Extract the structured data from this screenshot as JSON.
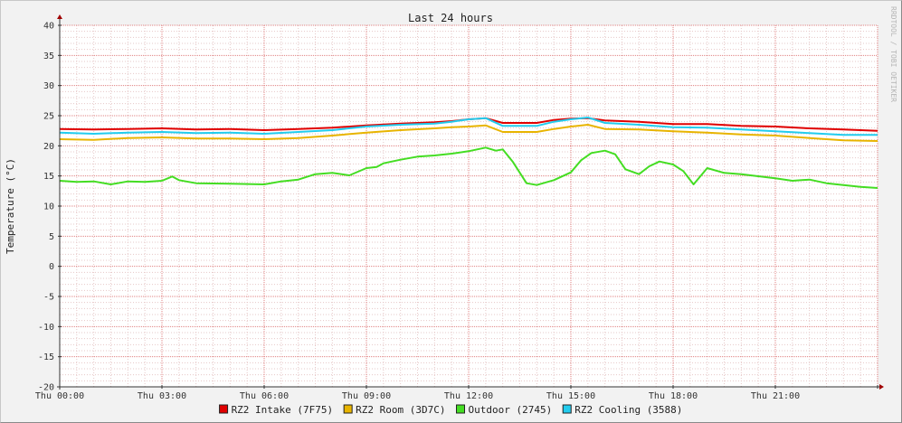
{
  "chart_data": {
    "type": "line",
    "title": "Last 24 hours",
    "ylabel": "Temperature (°C)",
    "watermark": "RRDTOOL / TOBI OETIKER",
    "ylim": [
      -20,
      40
    ],
    "y_ticks": [
      40,
      35,
      30,
      25,
      20,
      15,
      10,
      5,
      0,
      -5,
      -10,
      -15,
      -20
    ],
    "xlim_hours": [
      0,
      24
    ],
    "x_ticks": [
      "Thu 00:00",
      "Thu 03:00",
      "Thu 06:00",
      "Thu 09:00",
      "Thu 12:00",
      "Thu 15:00",
      "Thu 18:00",
      "Thu 21:00"
    ],
    "grid": true,
    "legend_position": "bottom",
    "series": [
      {
        "name": "RZ2 Intake (7F75)",
        "color": "#e00000",
        "x": [
          0,
          1,
          2,
          3,
          4,
          5,
          6,
          7,
          8,
          9,
          10,
          11,
          11.5,
          12,
          12.5,
          13,
          14,
          14.5,
          15,
          15.5,
          16,
          17,
          18,
          19,
          20,
          21,
          22,
          23,
          24
        ],
        "y": [
          22.8,
          22.7,
          22.8,
          22.9,
          22.7,
          22.8,
          22.6,
          22.8,
          23.0,
          23.4,
          23.7,
          23.9,
          24.1,
          24.4,
          24.6,
          23.8,
          23.8,
          24.3,
          24.5,
          24.6,
          24.2,
          24.0,
          23.6,
          23.6,
          23.3,
          23.2,
          22.9,
          22.7,
          22.5
        ]
      },
      {
        "name": "RZ2 Room (3D7C)",
        "color": "#e8b400",
        "x": [
          0,
          1,
          2,
          3,
          4,
          5,
          6,
          7,
          8,
          9,
          10,
          11,
          11.5,
          12,
          12.5,
          13,
          14,
          14.5,
          15,
          15.5,
          16,
          17,
          18,
          19,
          20,
          21,
          22,
          23,
          24
        ],
        "y": [
          21.1,
          21.0,
          21.3,
          21.4,
          21.2,
          21.2,
          21.1,
          21.3,
          21.7,
          22.2,
          22.6,
          22.9,
          23.1,
          23.2,
          23.4,
          22.3,
          22.3,
          22.8,
          23.2,
          23.5,
          22.8,
          22.7,
          22.4,
          22.2,
          21.9,
          21.7,
          21.3,
          20.9,
          20.8
        ]
      },
      {
        "name": "Outdoor (2745)",
        "color": "#44dd22",
        "x": [
          0,
          0.5,
          1,
          1.5,
          2,
          2.5,
          3,
          3.3,
          3.5,
          4,
          5,
          6,
          6.5,
          7,
          7.5,
          8,
          8.5,
          9,
          9.3,
          9.5,
          10,
          10.5,
          11,
          11.5,
          12,
          12.5,
          12.8,
          13,
          13.3,
          13.7,
          14,
          14.5,
          15,
          15.3,
          15.6,
          16,
          16.3,
          16.6,
          17,
          17.3,
          17.6,
          18,
          18.3,
          18.6,
          19,
          19.5,
          20,
          21,
          21.5,
          22,
          22.5,
          23,
          23.5,
          24
        ],
        "y": [
          14.2,
          14.0,
          14.1,
          13.6,
          14.1,
          14.0,
          14.2,
          14.9,
          14.3,
          13.8,
          13.7,
          13.6,
          14.1,
          14.4,
          15.3,
          15.5,
          15.1,
          16.3,
          16.5,
          17.1,
          17.7,
          18.2,
          18.4,
          18.7,
          19.1,
          19.7,
          19.2,
          19.4,
          17.3,
          13.8,
          13.5,
          14.3,
          15.6,
          17.6,
          18.8,
          19.2,
          18.6,
          16.1,
          15.3,
          16.6,
          17.4,
          16.9,
          15.8,
          13.6,
          16.3,
          15.5,
          15.3,
          14.6,
          14.2,
          14.4,
          13.8,
          13.5,
          13.2,
          13.0
        ]
      },
      {
        "name": "RZ2 Cooling (3588)",
        "color": "#22ccee",
        "x": [
          0,
          1,
          2,
          3,
          4,
          5,
          6,
          7,
          8,
          9,
          10,
          11,
          11.5,
          12,
          12.5,
          13,
          14,
          14.5,
          15,
          15.5,
          16,
          17,
          18,
          19,
          20,
          21,
          22,
          23,
          24
        ],
        "y": [
          22.2,
          22.0,
          22.2,
          22.3,
          22.1,
          22.2,
          22.0,
          22.3,
          22.6,
          23.2,
          23.5,
          23.7,
          24.0,
          24.4,
          24.6,
          23.3,
          23.3,
          24.0,
          24.4,
          24.7,
          23.8,
          23.5,
          23.1,
          23.0,
          22.7,
          22.4,
          22.1,
          21.8,
          21.8
        ]
      }
    ]
  }
}
